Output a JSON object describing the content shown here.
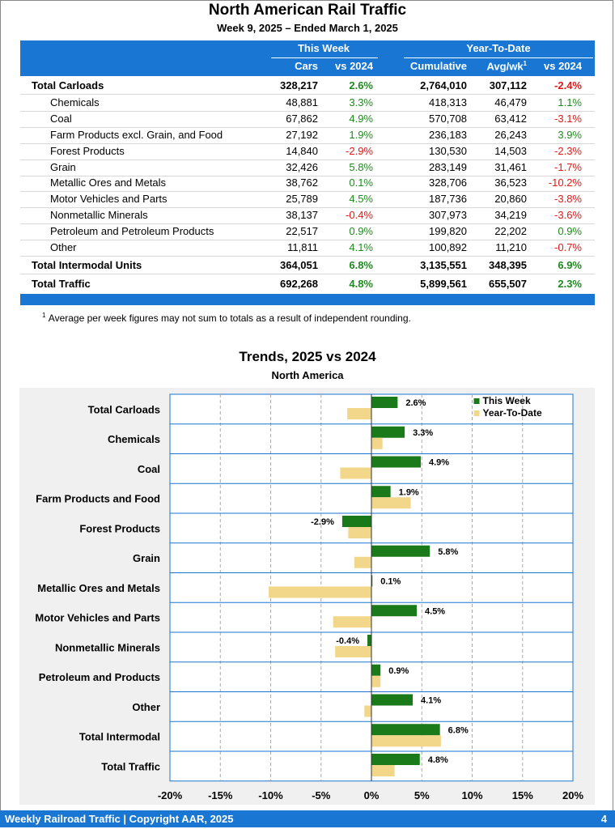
{
  "page": {
    "title": "North American Rail Traffic",
    "subtitle": "Week 9, 2025 – Ended March 1, 2025",
    "footnote_mark": "1",
    "footnote": "Average per week figures may not sum to totals as a result of independent rounding.",
    "footer_text": "Weekly Railroad Traffic | Copyright AAR, 2025",
    "page_number": "4"
  },
  "table": {
    "group_this_week": "This Week",
    "group_ytd": "Year-To-Date",
    "col_cars": "Cars",
    "col_vs_tw": "vs 2024",
    "col_cumulative": "Cumulative",
    "col_avg": "Avg/wk",
    "col_avg_sup": "1",
    "col_vs_ytd": "vs 2024",
    "colors": {
      "header": "#1976d2",
      "positive": "#1e8a1e",
      "negative": "#e01818"
    },
    "rows": [
      {
        "label": "Total Carloads",
        "cars": "328,217",
        "vs_tw": "2.6%",
        "cumulative": "2,764,010",
        "avg": "307,112",
        "vs_ytd": "-2.4%",
        "kind": "total"
      },
      {
        "label": "Chemicals",
        "cars": "48,881",
        "vs_tw": "3.3%",
        "cumulative": "418,313",
        "avg": "46,479",
        "vs_ytd": "1.1%",
        "kind": "sub"
      },
      {
        "label": "Coal",
        "cars": "67,862",
        "vs_tw": "4.9%",
        "cumulative": "570,708",
        "avg": "63,412",
        "vs_ytd": "-3.1%",
        "kind": "sub"
      },
      {
        "label": "Farm Products excl. Grain, and Food",
        "cars": "27,192",
        "vs_tw": "1.9%",
        "cumulative": "236,183",
        "avg": "26,243",
        "vs_ytd": "3.9%",
        "kind": "sub"
      },
      {
        "label": "Forest Products",
        "cars": "14,840",
        "vs_tw": "-2.9%",
        "cumulative": "130,530",
        "avg": "14,503",
        "vs_ytd": "-2.3%",
        "kind": "sub"
      },
      {
        "label": "Grain",
        "cars": "32,426",
        "vs_tw": "5.8%",
        "cumulative": "283,149",
        "avg": "31,461",
        "vs_ytd": "-1.7%",
        "kind": "sub"
      },
      {
        "label": "Metallic Ores and Metals",
        "cars": "38,762",
        "vs_tw": "0.1%",
        "cumulative": "328,706",
        "avg": "36,523",
        "vs_ytd": "-10.2%",
        "kind": "sub"
      },
      {
        "label": "Motor Vehicles and Parts",
        "cars": "25,789",
        "vs_tw": "4.5%",
        "cumulative": "187,736",
        "avg": "20,860",
        "vs_ytd": "-3.8%",
        "kind": "sub"
      },
      {
        "label": "Nonmetallic Minerals",
        "cars": "38,137",
        "vs_tw": "-0.4%",
        "cumulative": "307,973",
        "avg": "34,219",
        "vs_ytd": "-3.6%",
        "kind": "sub"
      },
      {
        "label": "Petroleum and Petroleum Products",
        "cars": "22,517",
        "vs_tw": "0.9%",
        "cumulative": "199,820",
        "avg": "22,202",
        "vs_ytd": "0.9%",
        "kind": "sub"
      },
      {
        "label": "Other",
        "cars": "11,811",
        "vs_tw": "4.1%",
        "cumulative": "100,892",
        "avg": "11,210",
        "vs_ytd": "-0.7%",
        "kind": "sub"
      },
      {
        "label": "Total Intermodal Units",
        "cars": "364,051",
        "vs_tw": "6.8%",
        "cumulative": "3,135,551",
        "avg": "348,395",
        "vs_ytd": "6.9%",
        "kind": "total"
      },
      {
        "label": "Total Traffic",
        "cars": "692,268",
        "vs_tw": "4.8%",
        "cumulative": "5,899,561",
        "avg": "655,507",
        "vs_ytd": "2.3%",
        "kind": "total"
      }
    ]
  },
  "chart_data": {
    "type": "bar",
    "orientation": "horizontal",
    "title": "Trends, 2025 vs 2024",
    "subtitle": "North America",
    "categories": [
      "Total Carloads",
      "Chemicals",
      "Coal",
      "Farm Products and Food",
      "Forest Products",
      "Grain",
      "Metallic Ores and Metals",
      "Motor Vehicles and Parts",
      "Nonmetallic Minerals",
      "Petroleum and Products",
      "Other",
      "Total Intermodal",
      "Total Traffic"
    ],
    "series": [
      {
        "name": "This Week",
        "color": "#1a7a1a",
        "values": [
          2.6,
          3.3,
          4.9,
          1.9,
          -2.9,
          5.8,
          0.1,
          4.5,
          -0.4,
          0.9,
          4.1,
          6.8,
          4.8
        ]
      },
      {
        "name": "Year-To-Date",
        "color": "#f2d78a",
        "values": [
          -2.4,
          1.1,
          -3.1,
          3.9,
          -2.3,
          -1.7,
          -10.2,
          -3.8,
          -3.6,
          0.9,
          -0.7,
          6.9,
          2.3
        ]
      }
    ],
    "data_labels": [
      "2.6%",
      "3.3%",
      "4.9%",
      "1.9%",
      "-2.9%",
      "5.8%",
      "0.1%",
      "4.5%",
      "-0.4%",
      "0.9%",
      "4.1%",
      "6.8%",
      "4.8%"
    ],
    "xlim": [
      -20,
      20
    ],
    "xticks": [
      -20,
      -15,
      -10,
      -5,
      0,
      5,
      10,
      15,
      20
    ],
    "xtick_labels": [
      "-20%",
      "-15%",
      "-10%",
      "-5%",
      "0%",
      "5%",
      "10%",
      "15%",
      "20%"
    ],
    "grid": true,
    "legend_position": "top-right"
  }
}
